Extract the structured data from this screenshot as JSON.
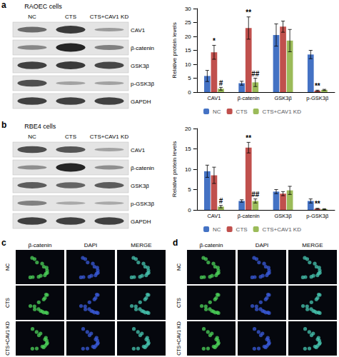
{
  "chart_data": [
    {
      "type": "bar",
      "y_label": "Relative protein levels",
      "categories": [
        "CAV1",
        "β-catenin",
        "GSK3β",
        "p-GSK3β"
      ],
      "series": [
        {
          "name": "NC",
          "color": "#4472c4",
          "values": [
            5.8,
            3.2,
            20.5,
            13.5
          ],
          "errors": [
            2.0,
            0.7,
            4.0,
            1.5
          ]
        },
        {
          "name": "CTS",
          "color": "#c0504d",
          "values": [
            14.3,
            23.0,
            23.5,
            0.5
          ],
          "errors": [
            2.5,
            4.0,
            2.0,
            0.2
          ]
        },
        {
          "name": "CTS+CAV1 KD",
          "color": "#9bbb59",
          "values": [
            1.2,
            3.5,
            18.5,
            0.8
          ],
          "errors": [
            0.5,
            1.5,
            4.0,
            0.2
          ]
        }
      ],
      "annotations": [
        {
          "category": "CAV1",
          "series": "CTS",
          "text": "*"
        },
        {
          "category": "CAV1",
          "series": "CTS+CAV1 KD",
          "text": "#"
        },
        {
          "category": "β-catenin",
          "series": "CTS",
          "text": "**"
        },
        {
          "category": "β-catenin",
          "series": "CTS+CAV1 KD",
          "text": "##"
        },
        {
          "category": "p-GSK3β",
          "series": "CTS",
          "text": "**"
        }
      ],
      "ylim": [
        0,
        30
      ],
      "yticks": [
        0,
        5,
        10,
        15,
        20,
        25,
        30
      ],
      "grid": false,
      "legend": "bottom"
    },
    {
      "type": "bar",
      "y_label": "Relative protein levels",
      "categories": [
        "CAV1",
        "β-catenin",
        "GSK3β",
        "p-GSK3β"
      ],
      "series": [
        {
          "name": "NC",
          "color": "#4472c4",
          "values": [
            9.5,
            2.2,
            4.5,
            2.2
          ],
          "errors": [
            1.5,
            0.3,
            0.5,
            0.5
          ]
        },
        {
          "name": "CTS",
          "color": "#c0504d",
          "values": [
            8.5,
            15.3,
            4.0,
            0.3
          ],
          "errors": [
            2.0,
            1.3,
            0.5,
            0.1
          ]
        },
        {
          "name": "CTS+CAV1 KD",
          "color": "#9bbb59",
          "values": [
            0.8,
            2.2,
            4.8,
            0.2
          ],
          "errors": [
            0.3,
            0.5,
            1.0,
            0.1
          ]
        }
      ],
      "annotations": [
        {
          "category": "CAV1",
          "series": "CTS+CAV1 KD",
          "text": "#"
        },
        {
          "category": "β-catenin",
          "series": "CTS",
          "text": "**"
        },
        {
          "category": "β-catenin",
          "series": "CTS+CAV1 KD",
          "text": "##"
        },
        {
          "category": "p-GSK3β",
          "series": "CTS",
          "text": "**"
        }
      ],
      "ylim": [
        0,
        20
      ],
      "yticks": [
        0,
        5,
        10,
        15,
        20
      ],
      "grid": false,
      "legend": "bottom"
    }
  ],
  "blots": [
    {
      "panel": "a",
      "title": "RAOEC cells",
      "lanes": [
        "NC",
        "CTS",
        "CTS+CAV1 KD"
      ],
      "rows": [
        "CAV1",
        "β-catenin",
        "GSK3β",
        "p-GSK3β",
        "GAPDH"
      ]
    },
    {
      "panel": "b",
      "title": "RBE4 cells",
      "lanes": [
        "NC",
        "CTS",
        "CTS+CAV1 KD"
      ],
      "rows": [
        "CAV1",
        "β-catenin",
        "GSK3β",
        "p-GSK3β",
        "GAPDH"
      ]
    }
  ],
  "images": [
    {
      "panel": "c",
      "columns": [
        "β-catenin",
        "DAPI",
        "MERGE"
      ],
      "rows": [
        "NC",
        "CTS",
        "CTS+CAV1 KD"
      ]
    },
    {
      "panel": "d",
      "columns": [
        "β-catenin",
        "DAPI",
        "MERGE"
      ],
      "rows": [
        "NC",
        "CTS",
        "CTS+CAV1 KD"
      ]
    }
  ]
}
